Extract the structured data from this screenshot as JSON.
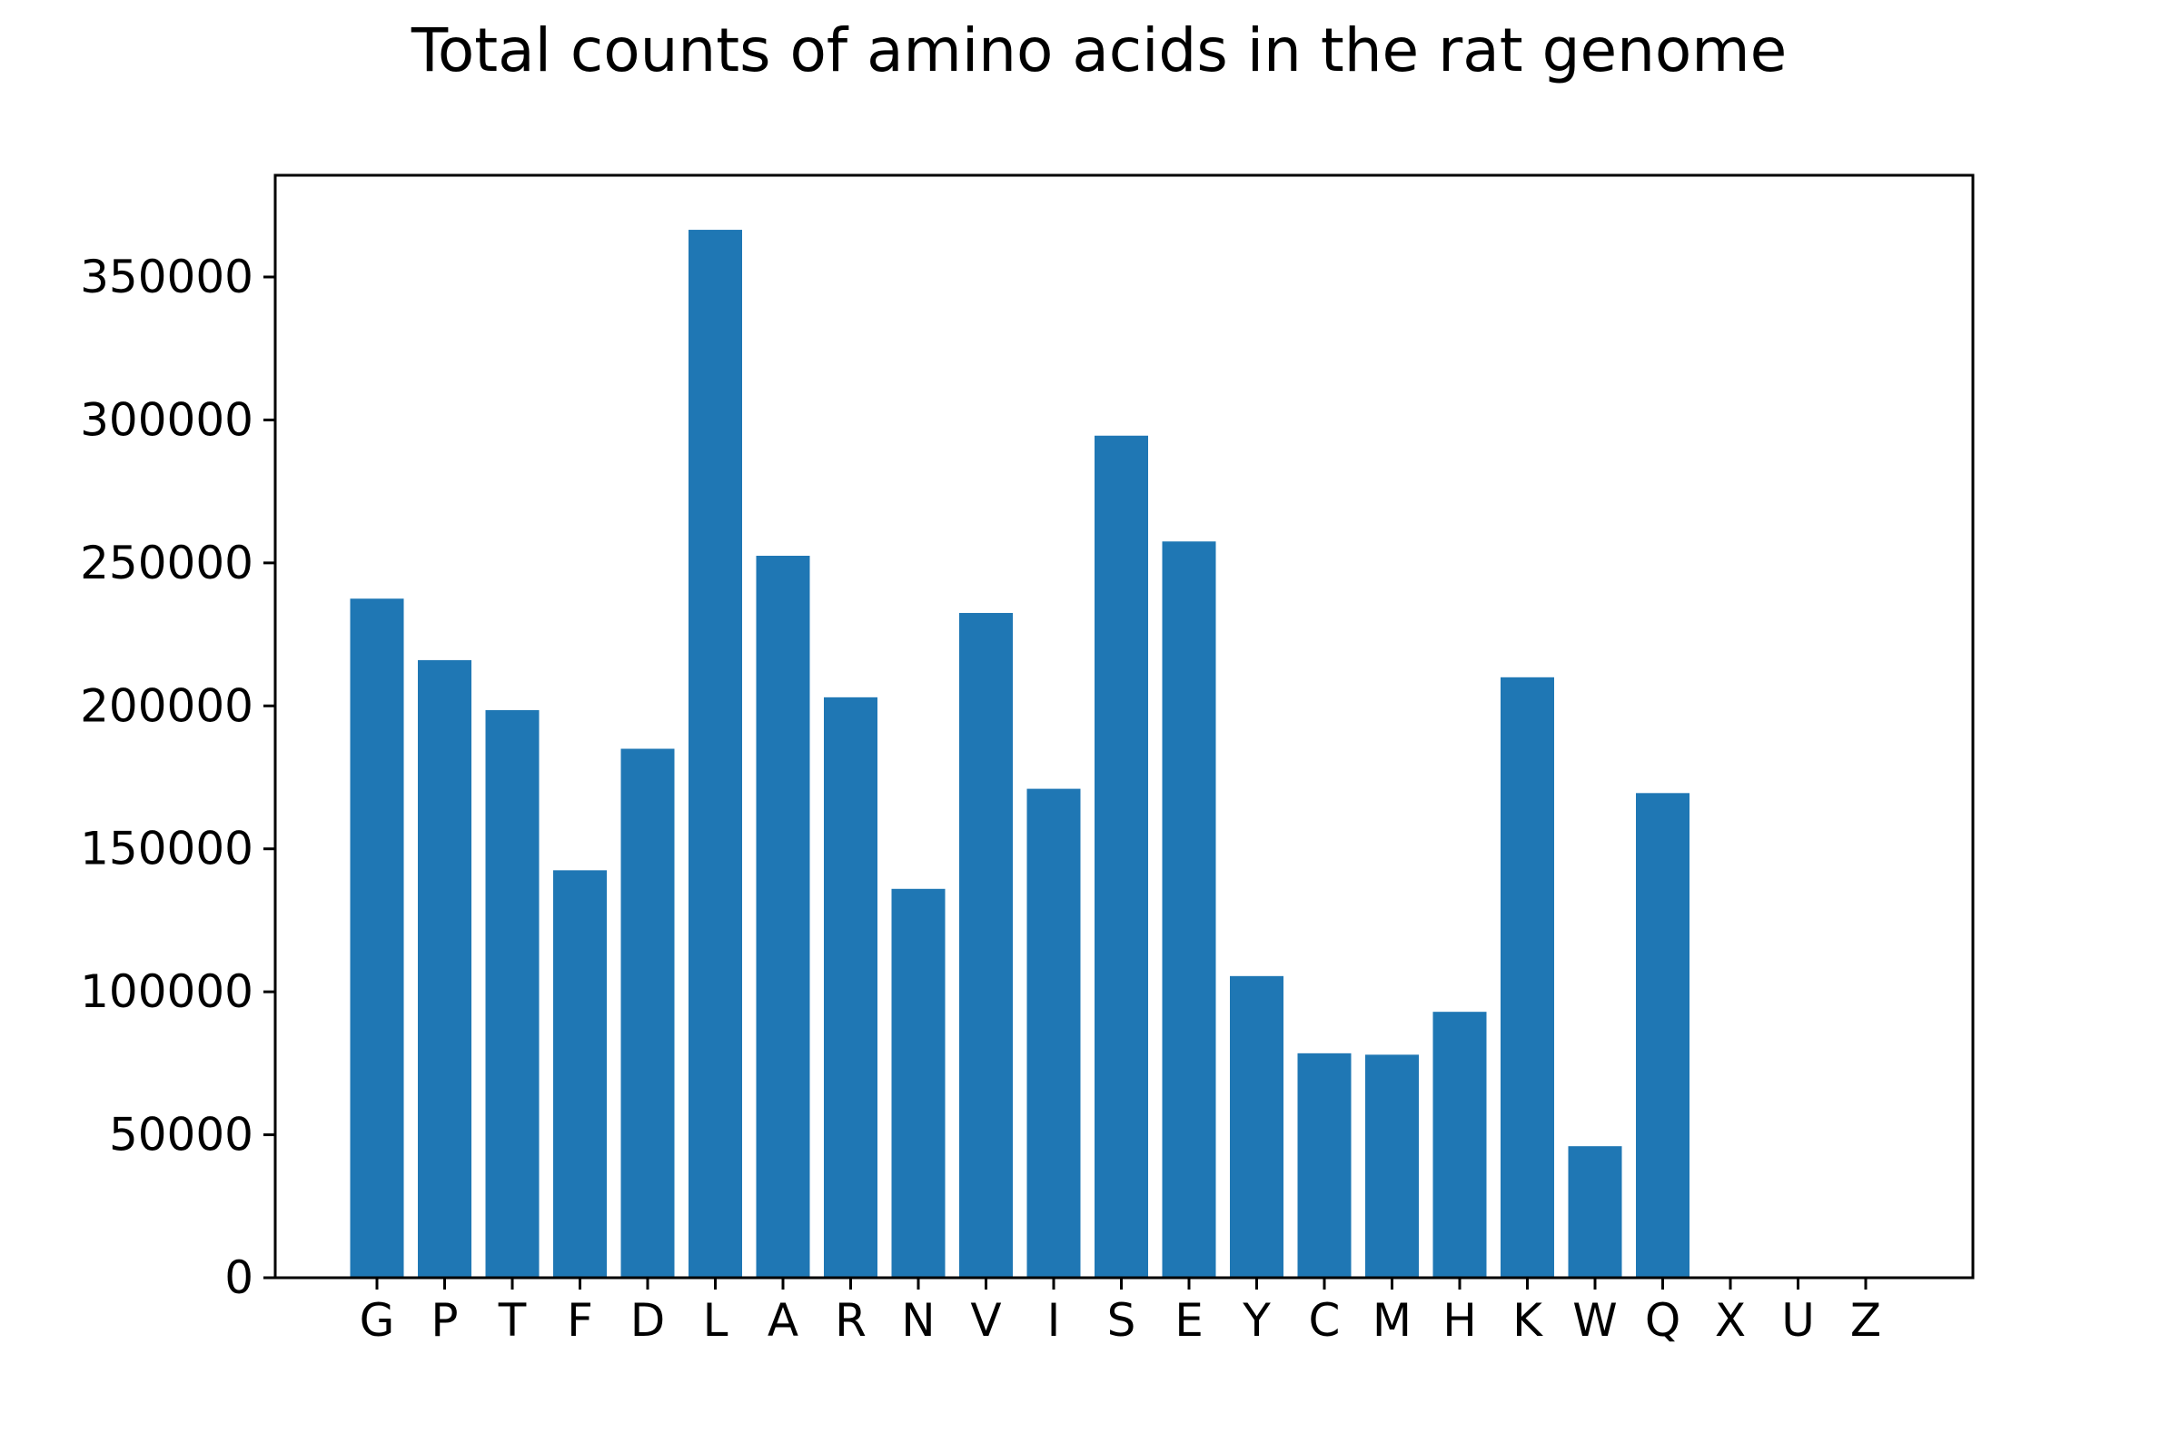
{
  "chart_data": {
    "type": "bar",
    "title": "Total counts of amino acids in the rat genome",
    "xlabel": "",
    "ylabel": "",
    "categories": [
      "G",
      "P",
      "T",
      "F",
      "D",
      "L",
      "A",
      "R",
      "N",
      "V",
      "I",
      "S",
      "E",
      "Y",
      "C",
      "M",
      "H",
      "K",
      "W",
      "Q",
      "X",
      "U",
      "Z"
    ],
    "values": [
      237500,
      216000,
      198500,
      142500,
      185000,
      366500,
      252500,
      203000,
      136000,
      232500,
      171000,
      294500,
      257500,
      105500,
      78500,
      78000,
      93000,
      210000,
      46000,
      169500,
      0,
      0,
      0
    ],
    "ylim": [
      0,
      385000
    ],
    "yticks": [
      0,
      50000,
      100000,
      150000,
      200000,
      250000,
      300000,
      350000
    ],
    "ytick_labels": [
      "0",
      "50000",
      "100000",
      "150000",
      "200000",
      "250000",
      "300000",
      "350000"
    ],
    "grid": false,
    "bar_color": "#1f77b4"
  }
}
